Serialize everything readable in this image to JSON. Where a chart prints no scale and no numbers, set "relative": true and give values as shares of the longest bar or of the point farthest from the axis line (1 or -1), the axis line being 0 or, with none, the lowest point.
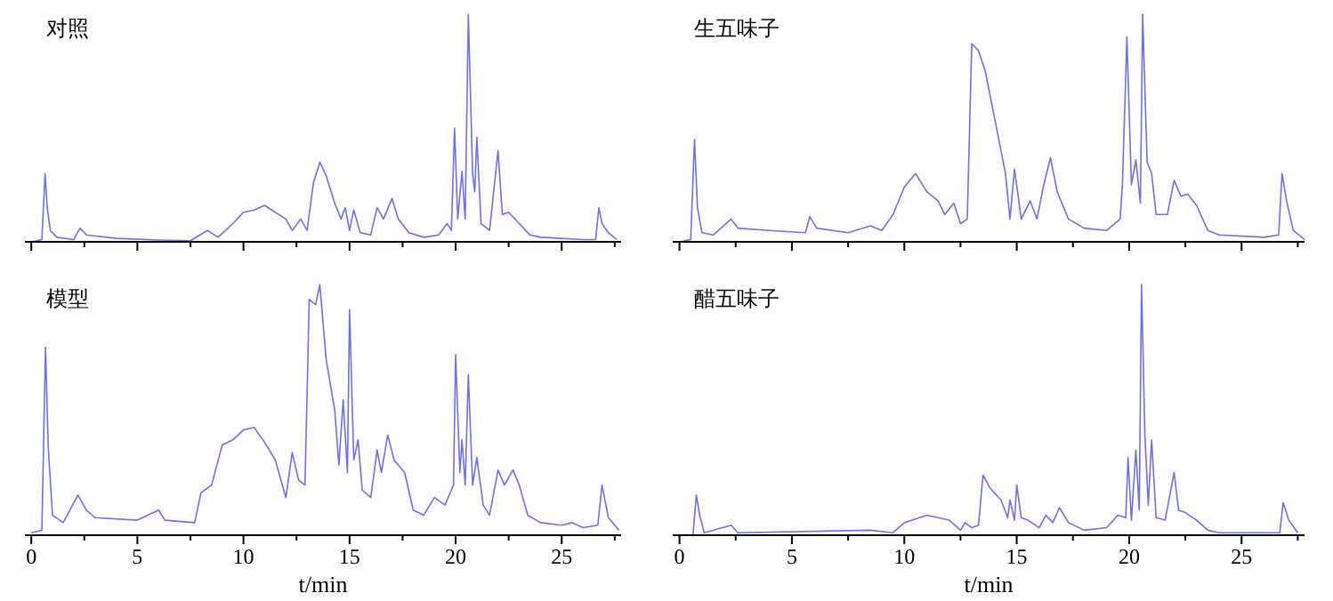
{
  "chart_data": [
    {
      "type": "line",
      "title": "对照",
      "relative": true,
      "color": "#6f6ff0",
      "xlim": [
        -0.3,
        27.8
      ],
      "tick_labels": false,
      "xticks": [
        0,
        {
          "value": 2.5,
          "label": null
        },
        5,
        {
          "value": 7.5,
          "label": null
        },
        10,
        {
          "value": 12.5,
          "label": null
        },
        15,
        {
          "value": 17.5,
          "label": null
        },
        20,
        {
          "value": 22.5,
          "label": null
        },
        25,
        {
          "value": 27.5,
          "label": null
        }
      ],
      "x": [
        0,
        0.5,
        0.65,
        0.75,
        0.9,
        1.2,
        2.0,
        2.3,
        2.6,
        4,
        6,
        7.5,
        8.3,
        8.8,
        9.5,
        10,
        10.5,
        11,
        11.5,
        12,
        12.3,
        12.7,
        13.0,
        13.3,
        13.6,
        13.9,
        14.3,
        14.6,
        14.8,
        15.0,
        15.2,
        15.5,
        16.0,
        16.3,
        16.6,
        17.0,
        17.3,
        17.8,
        18.5,
        19.2,
        19.6,
        19.8,
        19.95,
        20.1,
        20.3,
        20.45,
        20.6,
        20.8,
        20.9,
        21.0,
        21.2,
        21.6,
        22.0,
        22.2,
        22.5,
        23,
        23.5,
        24,
        26,
        26.6,
        26.75,
        26.9,
        27.2,
        27.6
      ],
      "values": [
        0,
        0.01,
        0.3,
        0.15,
        0.05,
        0.02,
        0.01,
        0.06,
        0.03,
        0.015,
        0.008,
        0.005,
        0.05,
        0.02,
        0.08,
        0.13,
        0.14,
        0.16,
        0.13,
        0.1,
        0.05,
        0.1,
        0.05,
        0.26,
        0.35,
        0.29,
        0.17,
        0.1,
        0.15,
        0.05,
        0.14,
        0.04,
        0.03,
        0.15,
        0.1,
        0.19,
        0.1,
        0.04,
        0.02,
        0.03,
        0.08,
        0.05,
        0.5,
        0.1,
        0.31,
        0.1,
        1.0,
        0.3,
        0.22,
        0.46,
        0.08,
        0.05,
        0.4,
        0.12,
        0.13,
        0.08,
        0.03,
        0.02,
        0.01,
        0.01,
        0.15,
        0.08,
        0.04,
        0.01
      ]
    },
    {
      "type": "line",
      "title": "生五味子",
      "relative": true,
      "color": "#6f6ff0",
      "xlim": [
        -0.3,
        27.8
      ],
      "tick_labels": false,
      "xticks": [
        0,
        {
          "value": 2.5,
          "label": null
        },
        5,
        {
          "value": 7.5,
          "label": null
        },
        10,
        {
          "value": 12.5,
          "label": null
        },
        15,
        {
          "value": 17.5,
          "label": null
        },
        20,
        {
          "value": 22.5,
          "label": null
        },
        25,
        {
          "value": 27.5,
          "label": null
        }
      ],
      "x": [
        0,
        0.5,
        0.67,
        0.8,
        1.0,
        1.5,
        2.3,
        2.6,
        4,
        5.6,
        5.8,
        6.1,
        7.5,
        8.5,
        9,
        9.5,
        10,
        10.5,
        11,
        11.5,
        11.8,
        12.2,
        12.5,
        12.8,
        13.0,
        13.3,
        13.6,
        14.0,
        14.5,
        14.7,
        14.9,
        15.2,
        15.6,
        15.9,
        16.2,
        16.5,
        16.8,
        17.3,
        18,
        19,
        19.6,
        19.7,
        19.9,
        20.1,
        20.3,
        20.5,
        20.6,
        20.8,
        21.0,
        21.2,
        21.7,
        22.0,
        22.3,
        22.6,
        23.0,
        23.5,
        24,
        26,
        26.65,
        26.8,
        27,
        27.3,
        27.8
      ],
      "values": [
        0,
        0.01,
        0.45,
        0.15,
        0.04,
        0.03,
        0.1,
        0.06,
        0.05,
        0.04,
        0.11,
        0.06,
        0.04,
        0.07,
        0.05,
        0.12,
        0.24,
        0.3,
        0.22,
        0.18,
        0.12,
        0.17,
        0.08,
        0.1,
        0.87,
        0.84,
        0.75,
        0.55,
        0.3,
        0.1,
        0.32,
        0.1,
        0.18,
        0.1,
        0.25,
        0.37,
        0.22,
        0.1,
        0.06,
        0.05,
        0.1,
        0.25,
        0.9,
        0.25,
        0.36,
        0.17,
        1.0,
        0.35,
        0.3,
        0.12,
        0.12,
        0.27,
        0.2,
        0.21,
        0.16,
        0.05,
        0.03,
        0.02,
        0.03,
        0.3,
        0.18,
        0.05,
        0.01
      ]
    },
    {
      "type": "line",
      "title": "模型",
      "relative": true,
      "color": "#6f6ff0",
      "xlim": [
        -0.3,
        27.8
      ],
      "tick_labels": "x",
      "xlabel": "t/min",
      "xticks": [
        0,
        {
          "value": 2.5,
          "label": null
        },
        5,
        {
          "value": 7.5,
          "label": null
        },
        10,
        {
          "value": 12.5,
          "label": null
        },
        15,
        {
          "value": 17.5,
          "label": null
        },
        20,
        {
          "value": 22.5,
          "label": null
        },
        25,
        {
          "value": 27.5,
          "label": null
        }
      ],
      "x": [
        0,
        0.5,
        0.67,
        0.8,
        1.0,
        1.5,
        2.2,
        2.6,
        3,
        5,
        6,
        6.3,
        7.7,
        8,
        8.5,
        9,
        9.5,
        10,
        10.5,
        11,
        11.5,
        12.0,
        12.3,
        12.6,
        12.9,
        13.1,
        13.4,
        13.6,
        13.9,
        14.3,
        14.5,
        14.7,
        14.9,
        15.0,
        15.2,
        15.4,
        15.6,
        16.0,
        16.3,
        16.5,
        16.8,
        17.1,
        17.6,
        18,
        18.5,
        19,
        19.5,
        19.9,
        20.0,
        20.2,
        20.3,
        20.45,
        20.6,
        20.8,
        21.0,
        21.3,
        21.6,
        22.0,
        22.3,
        22.7,
        23.0,
        23.4,
        24,
        25,
        25.5,
        26,
        26.7,
        26.9,
        27.2,
        27.7
      ],
      "values": [
        0.01,
        0.02,
        0.75,
        0.35,
        0.08,
        0.05,
        0.16,
        0.1,
        0.07,
        0.06,
        0.1,
        0.06,
        0.05,
        0.17,
        0.2,
        0.36,
        0.38,
        0.42,
        0.43,
        0.37,
        0.3,
        0.15,
        0.33,
        0.22,
        0.2,
        0.94,
        0.92,
        1.0,
        0.7,
        0.5,
        0.28,
        0.54,
        0.25,
        0.9,
        0.3,
        0.38,
        0.18,
        0.15,
        0.34,
        0.25,
        0.4,
        0.3,
        0.25,
        0.1,
        0.08,
        0.15,
        0.12,
        0.2,
        0.72,
        0.25,
        0.38,
        0.2,
        0.64,
        0.2,
        0.31,
        0.12,
        0.08,
        0.26,
        0.2,
        0.26,
        0.2,
        0.08,
        0.05,
        0.04,
        0.05,
        0.03,
        0.04,
        0.2,
        0.07,
        0.02
      ]
    },
    {
      "type": "line",
      "title": "醋五味子",
      "relative": true,
      "color": "#6f6ff0",
      "xlim": [
        -0.3,
        27.8
      ],
      "tick_labels": "x",
      "xlabel": "t/min",
      "xticks": [
        0,
        {
          "value": 2.5,
          "label": null
        },
        5,
        {
          "value": 7.5,
          "label": null
        },
        10,
        {
          "value": 12.5,
          "label": null
        },
        15,
        {
          "value": 17.5,
          "label": null
        },
        20,
        {
          "value": 22.5,
          "label": null
        },
        25,
        {
          "value": 27.5,
          "label": null
        }
      ],
      "x": [
        0,
        0.6,
        0.75,
        0.9,
        1.1,
        2.3,
        2.6,
        8.5,
        9.5,
        10,
        11,
        12,
        12.5,
        12.7,
        13,
        13.3,
        13.5,
        13.8,
        14.3,
        14.6,
        14.7,
        14.9,
        15.0,
        15.2,
        15.5,
        16.0,
        16.3,
        16.6,
        16.9,
        17.3,
        18,
        19,
        19.5,
        19.85,
        19.95,
        20.1,
        20.3,
        20.45,
        20.55,
        20.7,
        20.85,
        21.0,
        21.2,
        21.6,
        22.0,
        22.2,
        22.5,
        23,
        23.5,
        24,
        26.7,
        26.85,
        27.1,
        27.5
      ],
      "values": [
        0,
        0,
        0.16,
        0.08,
        0.01,
        0.04,
        0.01,
        0.02,
        0.01,
        0.05,
        0.08,
        0.06,
        0.02,
        0.05,
        0.03,
        0.04,
        0.24,
        0.19,
        0.14,
        0.07,
        0.14,
        0.06,
        0.2,
        0.07,
        0.06,
        0.03,
        0.08,
        0.05,
        0.11,
        0.05,
        0.02,
        0.03,
        0.08,
        0.07,
        0.31,
        0.06,
        0.34,
        0.1,
        1.0,
        0.4,
        0.12,
        0.38,
        0.07,
        0.06,
        0.25,
        0.1,
        0.09,
        0.06,
        0.02,
        0.01,
        0.01,
        0.13,
        0.06,
        0.01
      ]
    }
  ]
}
